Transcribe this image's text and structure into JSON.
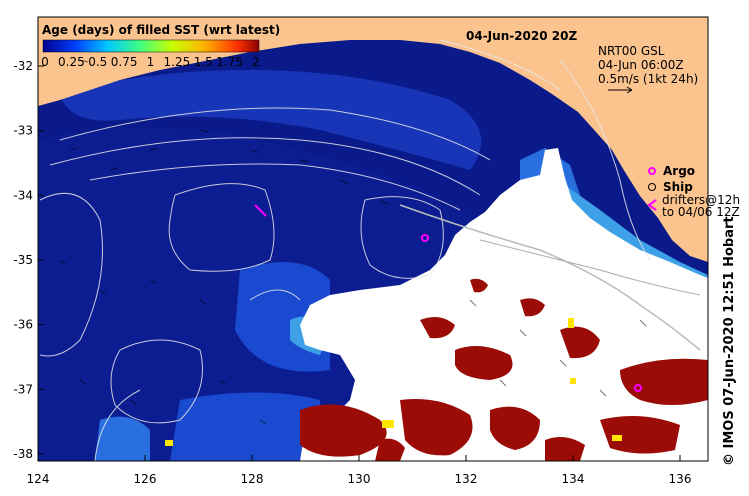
{
  "map": {
    "date_label": "04-Jun-2020 20Z",
    "colorbar": {
      "title": "Age (days) of filled SST (wrt latest)",
      "ticks": [
        "0",
        "0.25",
        "0.5",
        "0.75",
        "1",
        "1.25",
        "1.5",
        "1.75",
        "2"
      ]
    },
    "current_ref": {
      "line1": "NRT00 GSL",
      "line2": "04-Jun 06:00Z",
      "line3": "0.5m/s (1kt 24h)"
    },
    "legend": {
      "argo": "Argo",
      "ship": "Ship",
      "drifters_line1": "drifters@12h",
      "drifters_line2": "to 04/06 12Z"
    },
    "y_ticks": [
      "-32",
      "-33",
      "-34",
      "-35",
      "-36",
      "-37",
      "-38"
    ],
    "x_ticks": [
      "124",
      "126",
      "128",
      "130",
      "132",
      "134",
      "136"
    ],
    "credit": "© IMOS 07-Jun-2020 12:51 Hobart"
  },
  "colors": {
    "land": "#fbc48f",
    "ocean_deep": "#0a1a8a",
    "ocean_mid": "#1646c0",
    "ocean_light": "#3ea0e6",
    "cloud": "#ffffff",
    "old_sst": "#9a0c05",
    "argo": "#ff00ff"
  }
}
